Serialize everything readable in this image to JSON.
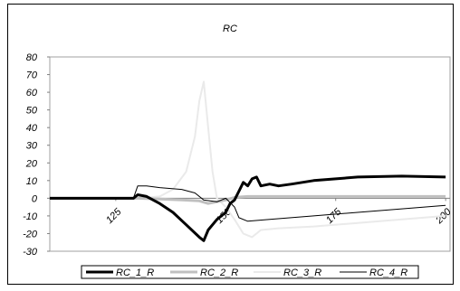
{
  "chart_data": {
    "type": "line",
    "title": "RC",
    "xlabel": "",
    "ylabel": "",
    "xlim": [
      110,
      201
    ],
    "ylim": [
      -30,
      80
    ],
    "yticks": [
      -30,
      -20,
      -10,
      0,
      10,
      20,
      30,
      40,
      50,
      60,
      70,
      80
    ],
    "xticks": [
      125,
      150,
      175,
      200
    ],
    "grid": false,
    "legend_position": "bottom",
    "series": [
      {
        "name": "RC_1_R",
        "color": "#000000",
        "width": 3,
        "dash": "none",
        "points": [
          [
            110,
            0
          ],
          [
            129,
            0
          ],
          [
            130,
            2
          ],
          [
            132,
            1
          ],
          [
            135,
            -3
          ],
          [
            138,
            -8
          ],
          [
            141,
            -15
          ],
          [
            144,
            -22
          ],
          [
            145,
            -24
          ],
          [
            146,
            -18
          ],
          [
            148,
            -12
          ],
          [
            150,
            -8
          ],
          [
            151,
            -3
          ],
          [
            152,
            -1
          ],
          [
            153,
            4
          ],
          [
            154,
            9
          ],
          [
            155,
            7
          ],
          [
            156,
            11
          ],
          [
            157,
            12
          ],
          [
            158,
            7
          ],
          [
            160,
            8
          ],
          [
            162,
            7
          ],
          [
            165,
            8
          ],
          [
            170,
            10
          ],
          [
            175,
            11
          ],
          [
            180,
            12
          ],
          [
            190,
            12.5
          ],
          [
            200,
            12
          ]
        ]
      },
      {
        "name": "RC_2_R",
        "color": "#c0c0c0",
        "width": 3,
        "dash": "none",
        "points": [
          [
            110,
            0
          ],
          [
            130,
            0
          ],
          [
            135,
            -0.5
          ],
          [
            140,
            -1
          ],
          [
            144,
            -1.5
          ],
          [
            146,
            -3
          ],
          [
            148,
            -2
          ],
          [
            150,
            -1
          ],
          [
            152,
            0.5
          ],
          [
            155,
            1
          ],
          [
            160,
            1
          ],
          [
            175,
            1
          ],
          [
            190,
            1
          ],
          [
            200,
            1
          ]
        ]
      },
      {
        "name": "RC_3_R",
        "color": "#eaeaea",
        "width": 2,
        "dash": "none",
        "points": [
          [
            110,
            0
          ],
          [
            130,
            0
          ],
          [
            135,
            1
          ],
          [
            138,
            5
          ],
          [
            141,
            15
          ],
          [
            143,
            35
          ],
          [
            144,
            55
          ],
          [
            145,
            66
          ],
          [
            146,
            40
          ],
          [
            147,
            15
          ],
          [
            148,
            0
          ],
          [
            150,
            -5
          ],
          [
            152,
            -12
          ],
          [
            154,
            -20
          ],
          [
            156,
            -22
          ],
          [
            158,
            -18
          ],
          [
            162,
            -17
          ],
          [
            170,
            -16
          ],
          [
            180,
            -14
          ],
          [
            190,
            -12
          ],
          [
            200,
            -10
          ]
        ]
      },
      {
        "name": "RC_4_R",
        "color": "#000000",
        "width": 1,
        "dash": "none",
        "points": [
          [
            110,
            0
          ],
          [
            129,
            0
          ],
          [
            130,
            7
          ],
          [
            132,
            7
          ],
          [
            135,
            6
          ],
          [
            140,
            5
          ],
          [
            143,
            3
          ],
          [
            145,
            -1
          ],
          [
            148,
            -2
          ],
          [
            150,
            0
          ],
          [
            152,
            -5
          ],
          [
            153,
            -11
          ],
          [
            155,
            -13
          ],
          [
            160,
            -12
          ],
          [
            170,
            -10
          ],
          [
            180,
            -8
          ],
          [
            190,
            -6
          ],
          [
            200,
            -4
          ]
        ]
      }
    ]
  }
}
